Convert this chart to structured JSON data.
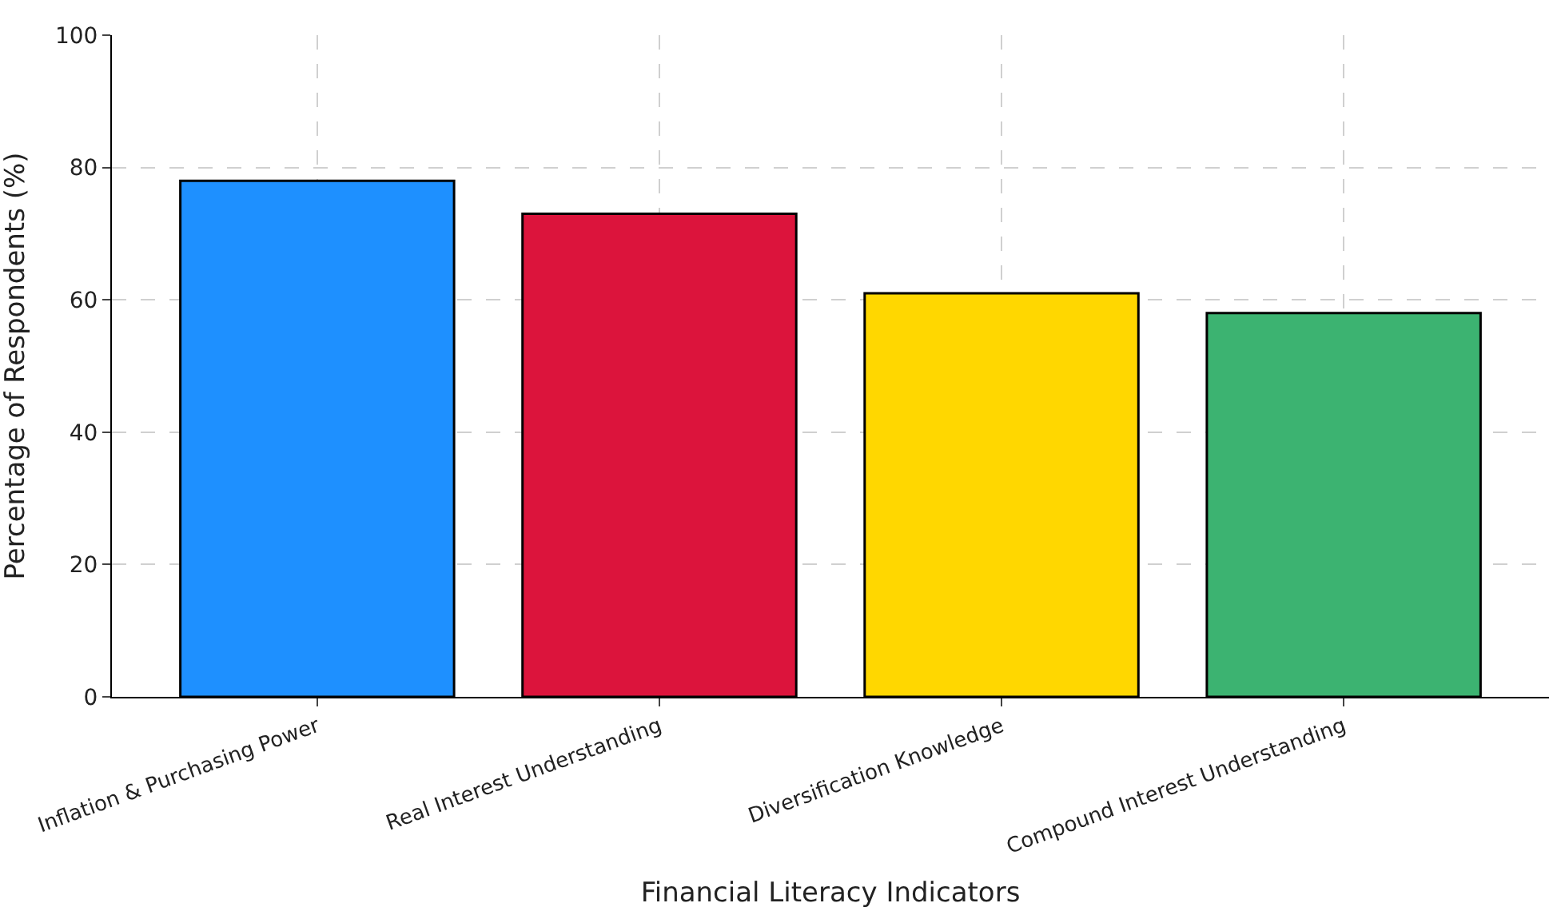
{
  "chart_data": {
    "type": "bar",
    "xlabel": "Financial Literacy Indicators",
    "ylabel": "Percentage of Respondents (%)",
    "categories": [
      "Inflation & Purchasing Power",
      "Real Interest Understanding",
      "Diversification Knowledge",
      "Compound Interest Understanding"
    ],
    "values": [
      78,
      73,
      61,
      58
    ],
    "colors": [
      "#1e90ff",
      "#dc143c",
      "#ffd700",
      "#3cb371"
    ],
    "ylim": [
      0,
      100
    ],
    "yticks": [
      0,
      20,
      40,
      60,
      80,
      100
    ],
    "grid": true
  }
}
